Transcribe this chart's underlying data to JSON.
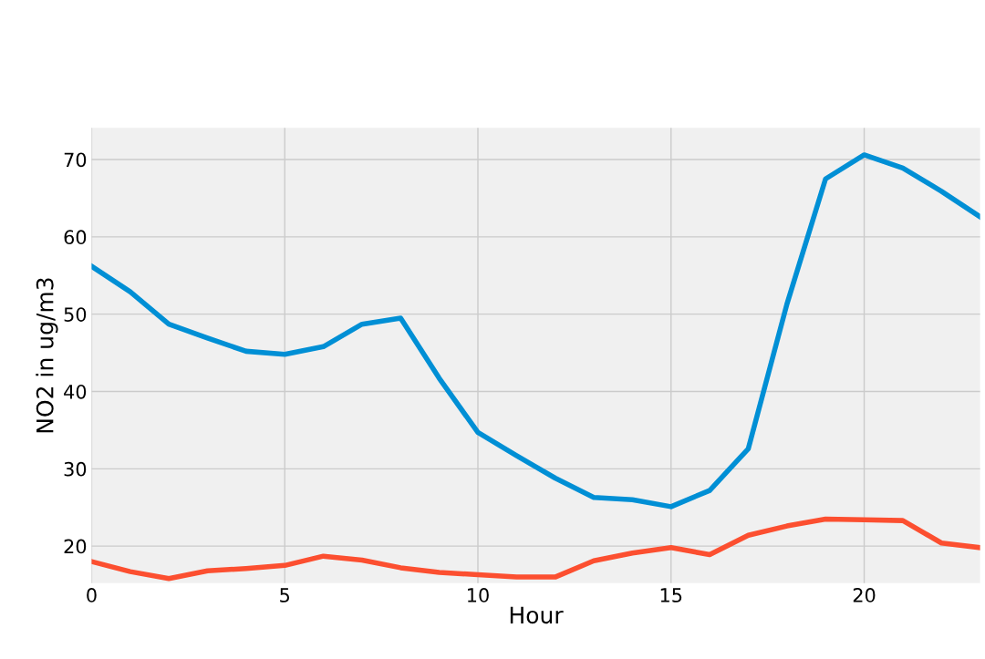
{
  "chart_data": {
    "type": "line",
    "xlabel": "Hour",
    "ylabel": "NO2 in ug/m3",
    "x": [
      0,
      1,
      2,
      3,
      4,
      5,
      6,
      7,
      8,
      9,
      10,
      11,
      12,
      13,
      14,
      15,
      16,
      17,
      18,
      19,
      20,
      21,
      22,
      23
    ],
    "series": [
      {
        "color": "#008fd5",
        "values": [
          56.2,
          52.9,
          48.7,
          46.9,
          45.2,
          44.8,
          45.8,
          48.7,
          49.5,
          41.7,
          34.7,
          31.7,
          28.8,
          26.3,
          26.0,
          25.1,
          27.2,
          32.6,
          51.3,
          67.5,
          70.6,
          68.9,
          65.9,
          62.6
        ]
      },
      {
        "color": "#fc4f30",
        "values": [
          18.0,
          16.7,
          15.8,
          16.8,
          17.1,
          17.5,
          18.7,
          18.2,
          17.2,
          16.6,
          16.3,
          16.0,
          16.0,
          18.1,
          19.1,
          19.8,
          18.9,
          21.4,
          22.6,
          23.5,
          23.4,
          23.3,
          20.4,
          19.8
        ]
      }
    ],
    "xlim": [
      0,
      23
    ],
    "xticks": [
      0,
      5,
      10,
      15,
      20
    ],
    "ylim": [
      15.2,
      74.1
    ],
    "yticks": [
      20,
      30,
      40,
      50,
      60,
      70
    ],
    "grid": true,
    "marker": "none",
    "line_style": "solid"
  }
}
